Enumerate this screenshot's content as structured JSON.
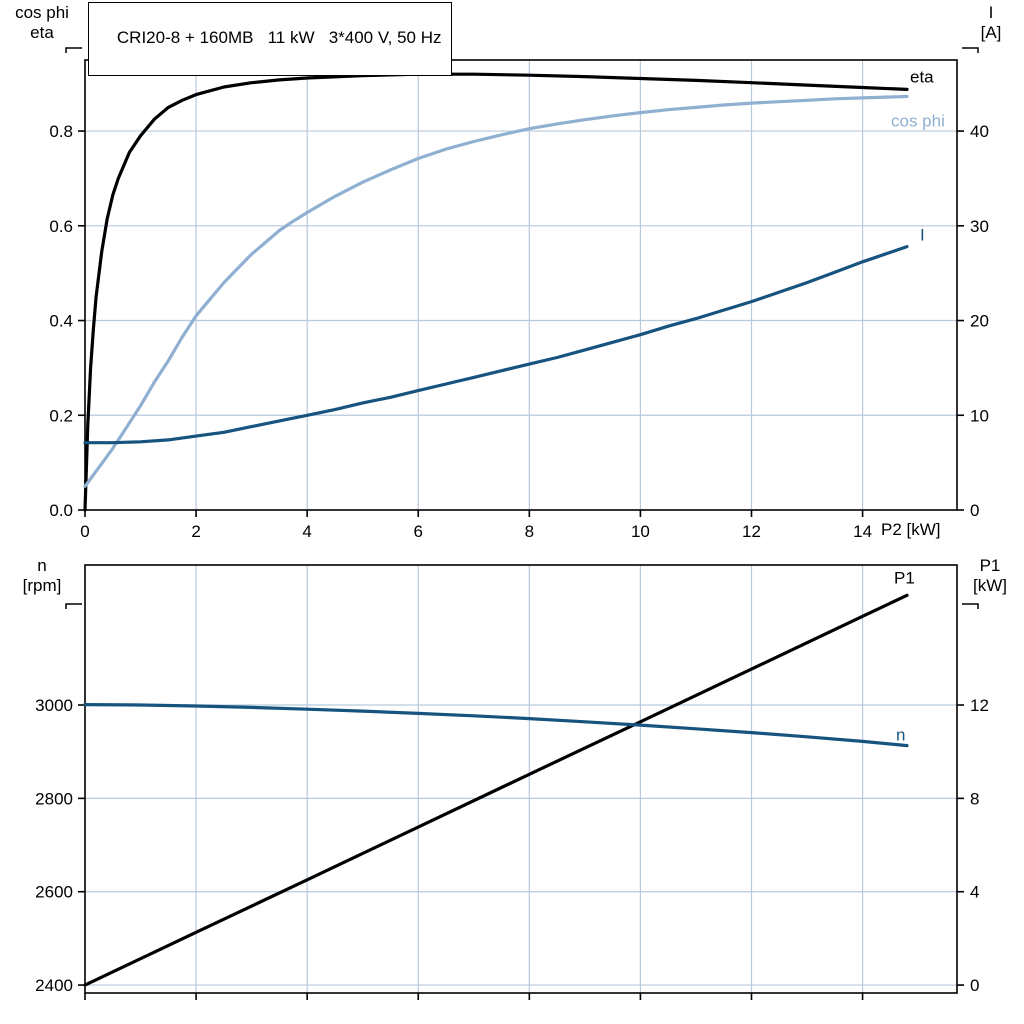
{
  "title": "CRI20-8 + 160MB   11 kW   3*400 V, 50 Hz",
  "colors": {
    "background": "#ffffff",
    "grid": "#b7c9db",
    "axis": "#000000",
    "eta_curve": "#000000",
    "cos_phi_curve": "#8fb0d1",
    "current_curve": "#17537f",
    "speed_curve": "#17537f",
    "p1_curve": "#000000"
  },
  "chart_data": [
    {
      "type": "line",
      "title": "CRI20-8 + 160MB   11 kW   3*400 V, 50 Hz",
      "grid": true,
      "x_axis": {
        "label": "P2 [kW]",
        "min": 0,
        "max": 15.7,
        "ticks": [
          0,
          2,
          4,
          6,
          8,
          10,
          12,
          14
        ],
        "tick_labels_visible": true,
        "tick_decimals": 0
      },
      "y_axis_left": {
        "label_lines": [
          "cos phi",
          "eta"
        ],
        "min": 0,
        "max": 0.95,
        "ticks": [
          0.0,
          0.2,
          0.4,
          0.6,
          0.8
        ],
        "tick_decimals": 1
      },
      "y_axis_right": {
        "label_lines": [
          "I",
          "[A]"
        ],
        "min": 0,
        "max": 47.5,
        "ticks": [
          0,
          10,
          20,
          30,
          40
        ],
        "tick_decimals": 0
      },
      "series": [
        {
          "name": "eta",
          "label": "eta",
          "axis": "left",
          "color": "#000000",
          "width": 3.2,
          "points": [
            [
              0,
              0
            ],
            [
              0.05,
              0.18
            ],
            [
              0.1,
              0.3
            ],
            [
              0.15,
              0.38
            ],
            [
              0.2,
              0.45
            ],
            [
              0.3,
              0.545
            ],
            [
              0.4,
              0.615
            ],
            [
              0.5,
              0.665
            ],
            [
              0.6,
              0.7
            ],
            [
              0.8,
              0.755
            ],
            [
              1.0,
              0.79
            ],
            [
              1.25,
              0.825
            ],
            [
              1.5,
              0.85
            ],
            [
              1.75,
              0.865
            ],
            [
              2.0,
              0.877
            ],
            [
              2.5,
              0.893
            ],
            [
              3.0,
              0.902
            ],
            [
              3.5,
              0.908
            ],
            [
              4.0,
              0.912
            ],
            [
              5.0,
              0.917
            ],
            [
              6.0,
              0.92
            ],
            [
              7.0,
              0.92
            ],
            [
              8.0,
              0.918
            ],
            [
              9.0,
              0.915
            ],
            [
              10.0,
              0.911
            ],
            [
              11.0,
              0.907
            ],
            [
              12.0,
              0.902
            ],
            [
              13.0,
              0.897
            ],
            [
              14.0,
              0.892
            ],
            [
              14.8,
              0.888
            ]
          ]
        },
        {
          "name": "cos phi",
          "label": "cos phi",
          "axis": "left",
          "color": "#8fb0d1",
          "width": 3.2,
          "points": [
            [
              0,
              0.05
            ],
            [
              0.25,
              0.09
            ],
            [
              0.5,
              0.13
            ],
            [
              0.75,
              0.175
            ],
            [
              1.0,
              0.22
            ],
            [
              1.25,
              0.27
            ],
            [
              1.5,
              0.315
            ],
            [
              1.75,
              0.365
            ],
            [
              2.0,
              0.41
            ],
            [
              2.25,
              0.445
            ],
            [
              2.5,
              0.48
            ],
            [
              2.75,
              0.51
            ],
            [
              3.0,
              0.54
            ],
            [
              3.25,
              0.565
            ],
            [
              3.5,
              0.59
            ],
            [
              3.75,
              0.61
            ],
            [
              4.0,
              0.628
            ],
            [
              4.5,
              0.662
            ],
            [
              5.0,
              0.692
            ],
            [
              5.5,
              0.718
            ],
            [
              6.0,
              0.742
            ],
            [
              6.5,
              0.762
            ],
            [
              7.0,
              0.778
            ],
            [
              7.5,
              0.792
            ],
            [
              8.0,
              0.805
            ],
            [
              8.5,
              0.815
            ],
            [
              9.0,
              0.824
            ],
            [
              9.5,
              0.832
            ],
            [
              10.0,
              0.839
            ],
            [
              10.5,
              0.845
            ],
            [
              11.0,
              0.85
            ],
            [
              11.5,
              0.855
            ],
            [
              12.0,
              0.859
            ],
            [
              12.5,
              0.862
            ],
            [
              13.0,
              0.865
            ],
            [
              13.5,
              0.868
            ],
            [
              14.0,
              0.87
            ],
            [
              14.8,
              0.873
            ]
          ]
        },
        {
          "name": "I",
          "label": "I",
          "axis": "right",
          "color": "#17537f",
          "width": 3.2,
          "points": [
            [
              0,
              7.1
            ],
            [
              0.5,
              7.1
            ],
            [
              1.0,
              7.2
            ],
            [
              1.5,
              7.4
            ],
            [
              2.0,
              7.8
            ],
            [
              2.5,
              8.2
            ],
            [
              3.0,
              8.8
            ],
            [
              3.5,
              9.4
            ],
            [
              4.0,
              10.0
            ],
            [
              4.5,
              10.6
            ],
            [
              5.0,
              11.3
            ],
            [
              5.5,
              11.9
            ],
            [
              6.0,
              12.6
            ],
            [
              6.5,
              13.3
            ],
            [
              7.0,
              14.0
            ],
            [
              7.5,
              14.7
            ],
            [
              8.0,
              15.4
            ],
            [
              8.5,
              16.1
            ],
            [
              9.0,
              16.9
            ],
            [
              9.5,
              17.7
            ],
            [
              10.0,
              18.5
            ],
            [
              10.5,
              19.4
            ],
            [
              11.0,
              20.2
            ],
            [
              11.5,
              21.1
            ],
            [
              12.0,
              22.0
            ],
            [
              12.5,
              23.0
            ],
            [
              13.0,
              24.0
            ],
            [
              13.5,
              25.1
            ],
            [
              14.0,
              26.2
            ],
            [
              14.4,
              27.0
            ],
            [
              14.8,
              27.8
            ]
          ]
        }
      ]
    },
    {
      "type": "line",
      "grid": true,
      "x_axis": {
        "label": "",
        "min": 0,
        "max": 15.7,
        "ticks": [
          0,
          2,
          4,
          6,
          8,
          10,
          12,
          14
        ],
        "tick_labels_visible": false,
        "tick_decimals": 0
      },
      "y_axis_left": {
        "label_lines": [
          "n",
          "[rpm]"
        ],
        "min": 2383,
        "max": 3300,
        "ticks": [
          2400,
          2600,
          2800,
          3000
        ],
        "tick_decimals": 0
      },
      "y_axis_right": {
        "label_lines": [
          "P1",
          "[kW]"
        ],
        "min": -0.34,
        "max": 18.0,
        "ticks": [
          0,
          4,
          8,
          12
        ],
        "tick_decimals": 0
      },
      "series": [
        {
          "name": "P1",
          "label": "P1",
          "axis": "right",
          "color": "#000000",
          "width": 3.2,
          "points": [
            [
              0,
              0
            ],
            [
              2,
              2.26
            ],
            [
              4,
              4.51
            ],
            [
              6,
              6.77
            ],
            [
              8,
              9.03
            ],
            [
              10,
              11.28
            ],
            [
              12,
              13.54
            ],
            [
              14,
              15.8
            ],
            [
              14.8,
              16.7
            ]
          ]
        },
        {
          "name": "n",
          "label": "n",
          "axis": "left",
          "color": "#17537f",
          "width": 3.2,
          "points": [
            [
              0,
              3001
            ],
            [
              1,
              3000
            ],
            [
              2,
              2998
            ],
            [
              3,
              2995
            ],
            [
              4,
              2991
            ],
            [
              5,
              2987
            ],
            [
              6,
              2982
            ],
            [
              7,
              2977
            ],
            [
              8,
              2971
            ],
            [
              9,
              2964
            ],
            [
              10,
              2957
            ],
            [
              11,
              2949
            ],
            [
              12,
              2941
            ],
            [
              13,
              2932
            ],
            [
              14,
              2922
            ],
            [
              14.8,
              2913
            ]
          ]
        }
      ]
    }
  ]
}
